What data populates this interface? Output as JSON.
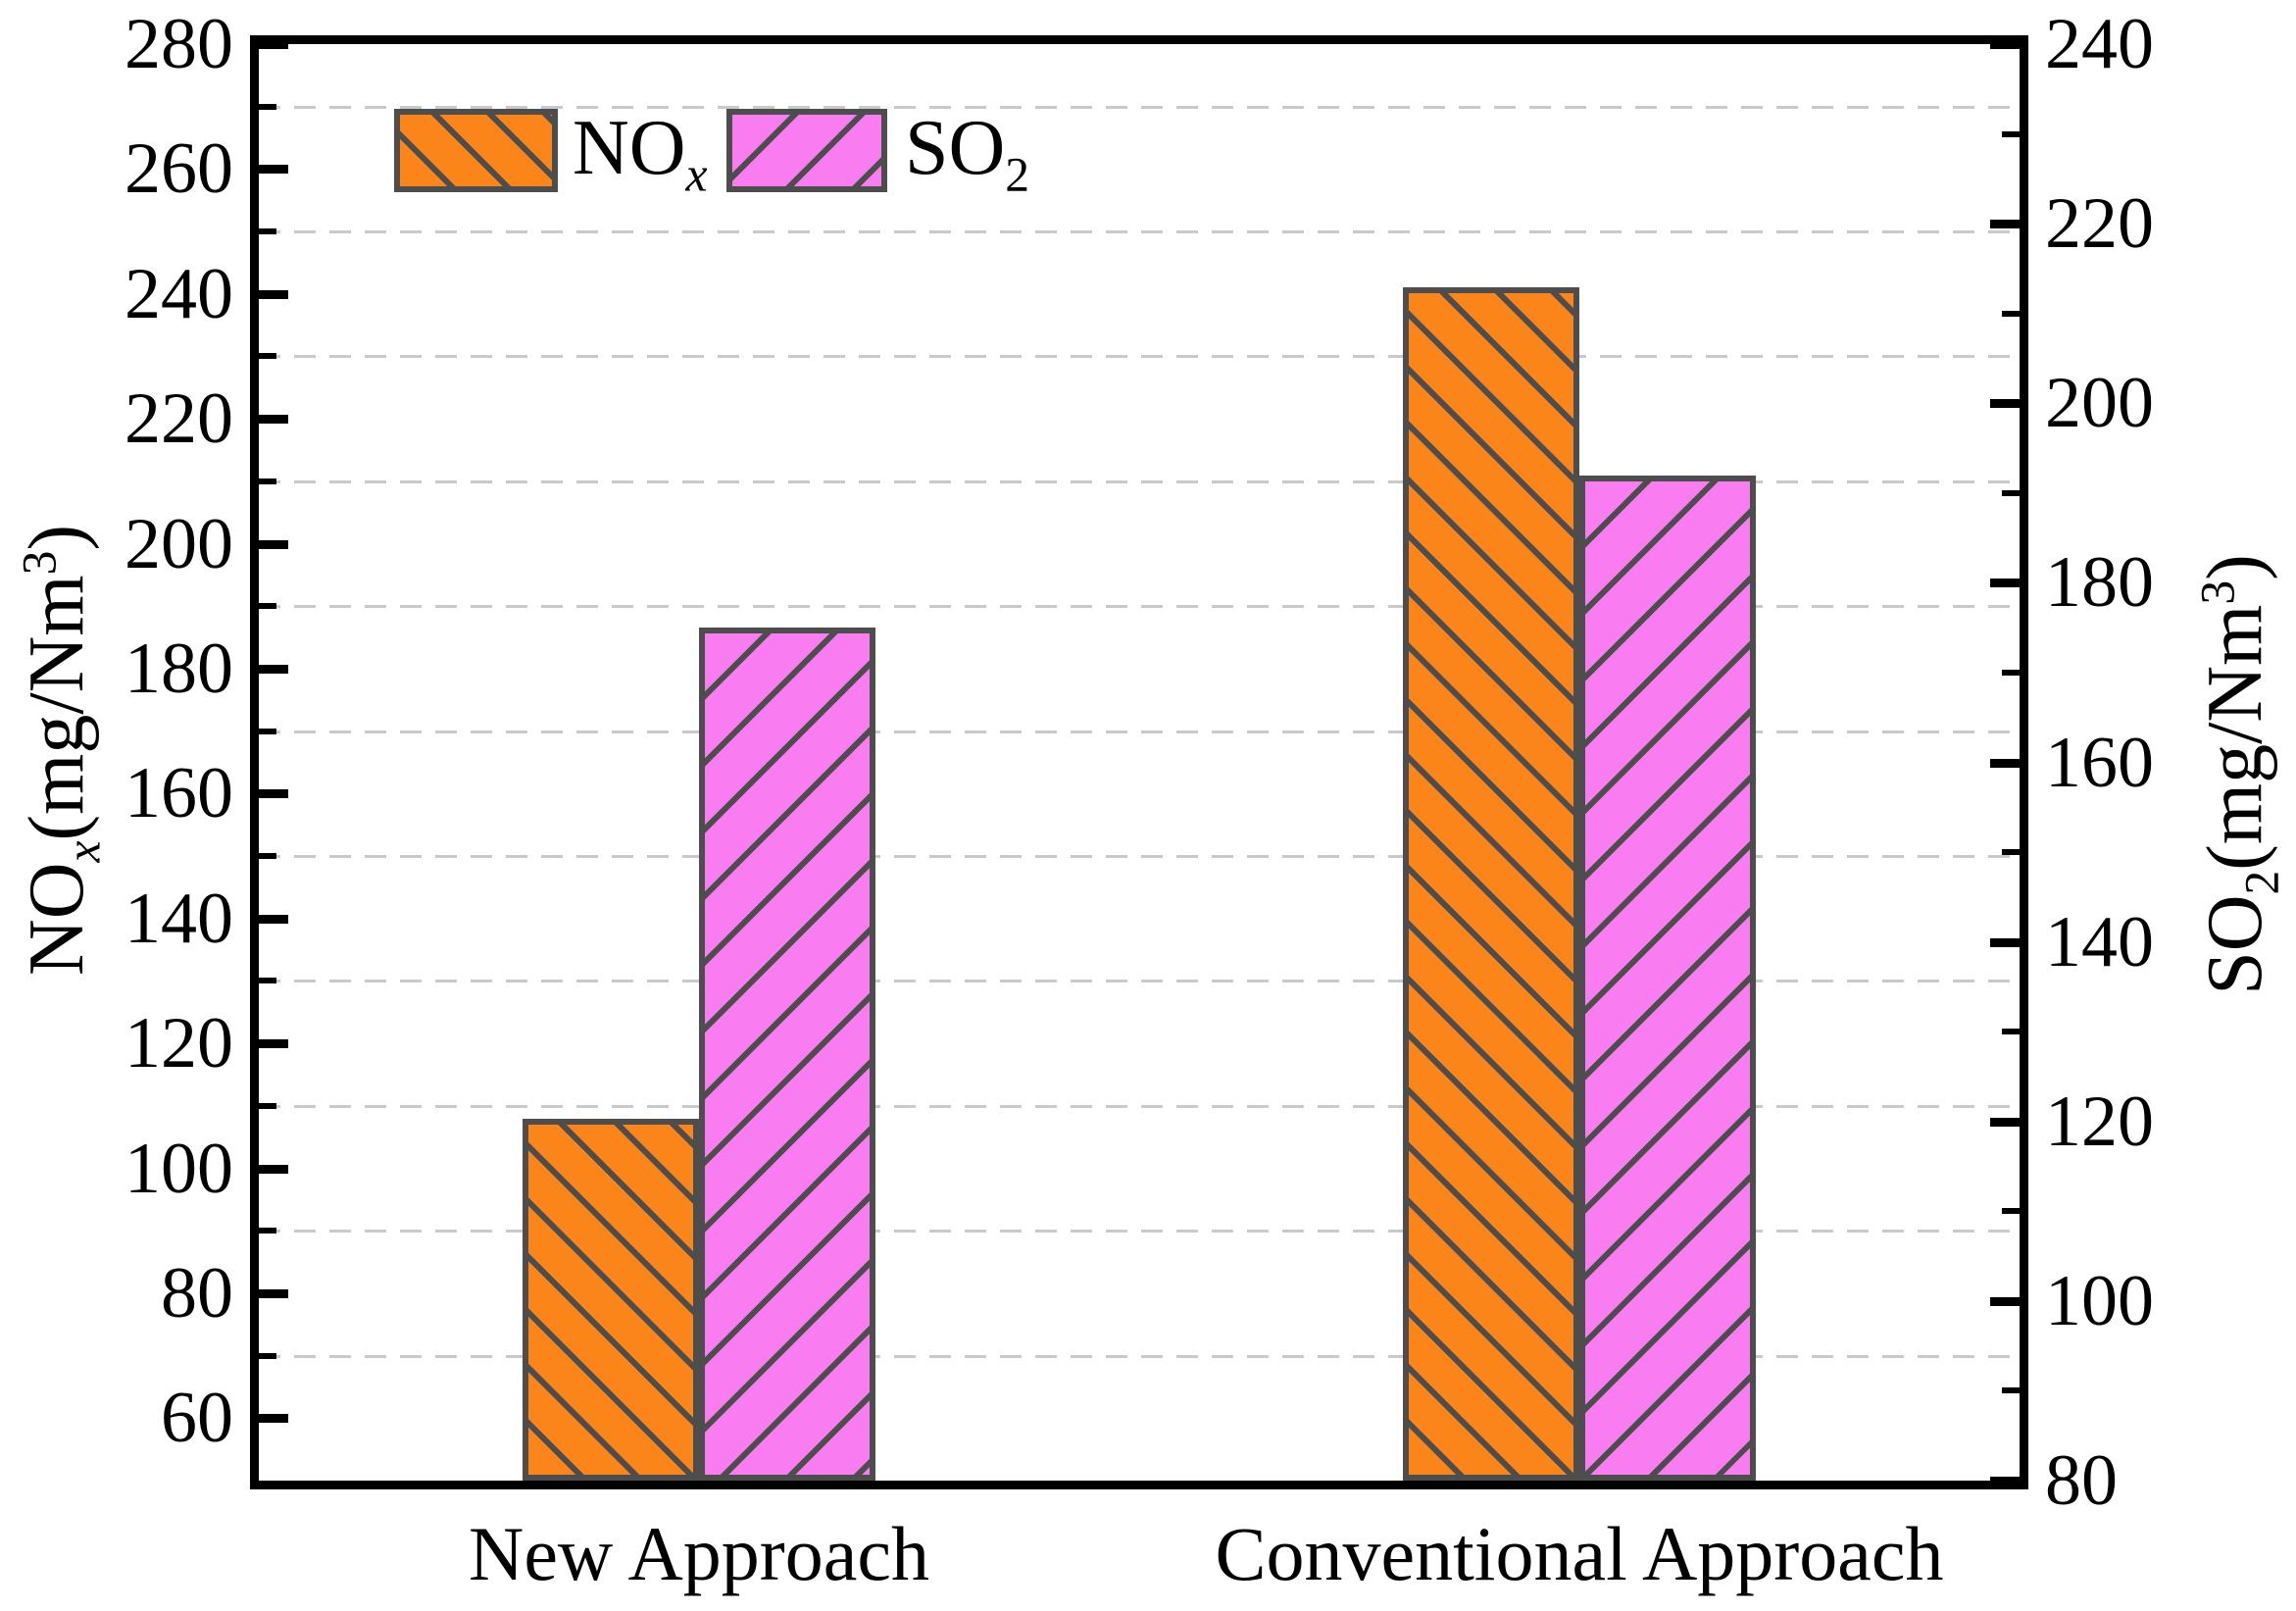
{
  "chart_data": {
    "type": "bar",
    "title": "",
    "categories": [
      "New Approach",
      "Conventional Approach"
    ],
    "series": [
      {
        "name": "NOx",
        "label_main": "NO",
        "label_sub": "x",
        "axis": "left",
        "values": [
          108,
          241
        ],
        "fill": "#FB8519",
        "hatch_dir": "backslash",
        "hatch_color": "#4D4D4D",
        "hatch_period": 40
      },
      {
        "name": "SO2",
        "label_main": "SO",
        "label_sub": "2",
        "axis": "right",
        "values": [
          175,
          192
        ],
        "fill": "#F97DF1",
        "hatch_dir": "slash",
        "hatch_color": "#4D4D4D",
        "hatch_period": 48
      }
    ],
    "left_axis": {
      "title_pre": "NO",
      "title_sub": "x",
      "title_mid": "(mg/Nm",
      "title_sup": "3",
      "title_post": ")",
      "min": 50,
      "max": 280,
      "major_ticks": [
        60,
        80,
        100,
        120,
        140,
        160,
        180,
        200,
        220,
        240,
        260,
        280
      ],
      "minor_ticks": [
        70,
        90,
        110,
        130,
        150,
        170,
        190,
        210,
        230,
        250,
        270
      ]
    },
    "right_axis": {
      "title_pre": "SO",
      "title_sub": "2",
      "title_mid": "(mg/Nm",
      "title_sup": "3",
      "title_post": ")",
      "min": 80,
      "max": 240,
      "major_ticks": [
        80,
        100,
        120,
        140,
        160,
        180,
        200,
        220,
        240
      ],
      "minor_ticks": [
        90,
        110,
        130,
        150,
        170,
        190,
        210,
        230
      ]
    },
    "gridlines": {
      "axis": "left",
      "values": [
        70,
        90,
        110,
        130,
        150,
        170,
        190,
        210,
        230,
        250,
        270
      ],
      "style": "dashed",
      "color": "#C9C9C9"
    },
    "legend": {
      "position": "top-left-inside"
    },
    "colors": {
      "background": "#FFFFFF",
      "frame": "#000000",
      "bar_edge": "#4D4D4D",
      "grid": "#C9C9C9"
    }
  }
}
